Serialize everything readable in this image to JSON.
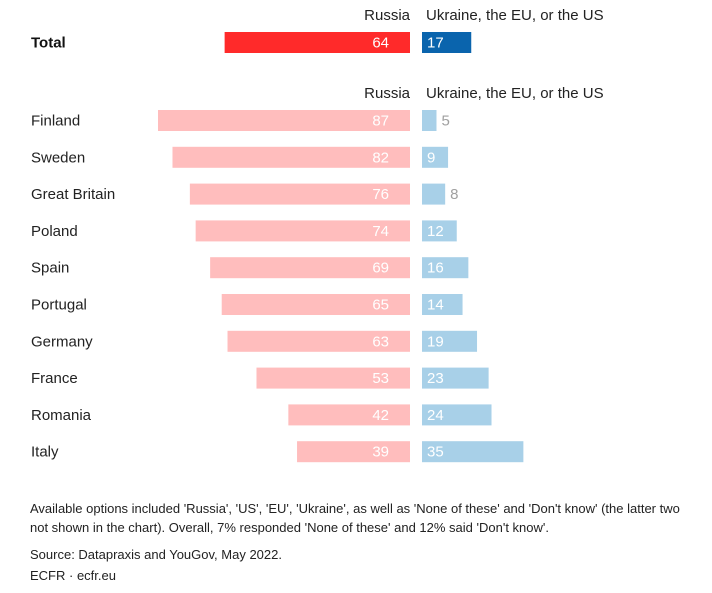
{
  "chart_data": {
    "type": "bar",
    "orientation": "horizontal-diverging",
    "series": [
      {
        "name": "Russia",
        "color": "#ff2a2a",
        "light_color": "#ffbdbd"
      },
      {
        "name": "Ukraine, the EU, or the US",
        "color": "#0a64ad",
        "light_color": "#a8d0e8"
      }
    ],
    "total": {
      "label": "Total",
      "russia": 64,
      "other": 17
    },
    "categories": [
      "Finland",
      "Sweden",
      "Great Britain",
      "Poland",
      "Spain",
      "Portugal",
      "Germany",
      "France",
      "Romania",
      "Italy"
    ],
    "russia_values": [
      87,
      82,
      76,
      74,
      69,
      65,
      63,
      53,
      42,
      39
    ],
    "other_values": [
      5,
      9,
      8,
      12,
      16,
      14,
      19,
      23,
      24,
      35
    ],
    "xlim": [
      0,
      100
    ]
  },
  "headers": {
    "russia": "Russia",
    "other": "Ukraine, the EU, or the US"
  },
  "footer": {
    "note": "Available options included 'Russia', 'US', 'EU', 'Ukraine', as well as 'None of these' and 'Don't know' (the latter two not shown in the chart). Overall, 7% responded 'None of these' and 12% said 'Don't know'.",
    "source": "Source: Datapraxis and YouGov, May 2022.",
    "credit": "ECFR · ecfr.eu"
  }
}
